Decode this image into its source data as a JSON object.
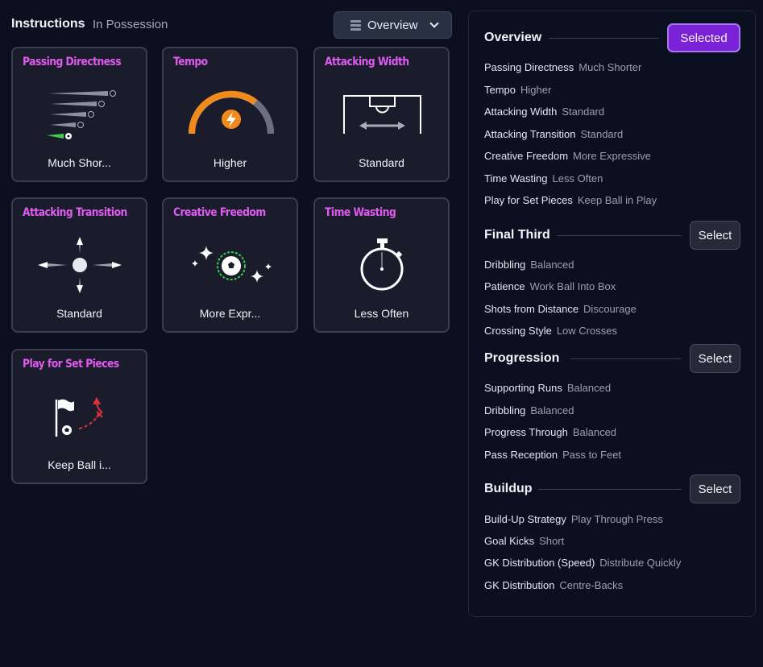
{
  "header": {
    "title": "Instructions",
    "subtitle": "In Possession",
    "view_label": "Overview"
  },
  "cards": [
    {
      "title": "Passing Directness",
      "value": "Much Shor..."
    },
    {
      "title": "Tempo",
      "value": "Higher"
    },
    {
      "title": "Attacking Width",
      "value": "Standard"
    },
    {
      "title": "Attacking Transition",
      "value": "Standard"
    },
    {
      "title": "Creative Freedom",
      "value": "More Expr..."
    },
    {
      "title": "Time Wasting",
      "value": "Less Often"
    },
    {
      "title": "Play for Set Pieces",
      "value": "Keep Ball i..."
    }
  ],
  "panel": {
    "overview": {
      "title": "Overview",
      "button": "Selected",
      "rows": [
        {
          "label": "Passing Directness",
          "value": "Much Shorter"
        },
        {
          "label": "Tempo",
          "value": "Higher"
        },
        {
          "label": "Attacking Width",
          "value": "Standard"
        },
        {
          "label": "Attacking Transition",
          "value": "Standard"
        },
        {
          "label": "Creative Freedom",
          "value": "More Expressive"
        },
        {
          "label": "Time Wasting",
          "value": "Less Often"
        },
        {
          "label": "Play for Set Pieces",
          "value": "Keep Ball in Play"
        }
      ]
    },
    "final_third": {
      "title": "Final Third",
      "button": "Select",
      "rows": [
        {
          "label": "Dribbling",
          "value": "Balanced"
        },
        {
          "label": "Patience",
          "value": "Work Ball Into Box"
        },
        {
          "label": "Shots from Distance",
          "value": "Discourage"
        },
        {
          "label": "Crossing Style",
          "value": "Low Crosses"
        }
      ]
    },
    "progression": {
      "title": "Progression",
      "button": "Select",
      "rows": [
        {
          "label": "Supporting Runs",
          "value": "Balanced"
        },
        {
          "label": "Dribbling",
          "value": "Balanced"
        },
        {
          "label": "Progress Through",
          "value": "Balanced"
        },
        {
          "label": "Pass Reception",
          "value": "Pass to Feet"
        }
      ]
    },
    "buildup": {
      "title": "Buildup",
      "button": "Select",
      "rows": [
        {
          "label": "Build-Up Strategy",
          "value": "Play Through Press"
        },
        {
          "label": "Goal Kicks",
          "value": "Short"
        },
        {
          "label": "GK Distribution (Speed)",
          "value": "Distribute Quickly"
        },
        {
          "label": "GK Distribution",
          "value": "Centre-Backs"
        }
      ]
    }
  },
  "colors": {
    "accent_title": "#e05bf0",
    "selected_button": "#7a22d8",
    "tempo_gauge": "#f08a1c",
    "set_piece_arrow": "#e0323a",
    "pass_green": "#3ccf4e"
  }
}
